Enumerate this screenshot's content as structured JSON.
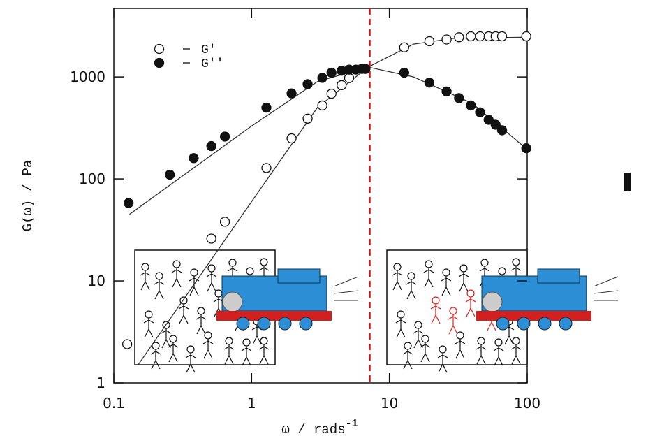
{
  "chart_data": {
    "type": "scatter",
    "xlabel": "ω / rads",
    "xlabel_sup": "-1",
    "ylabel": "G(ω) / Pa",
    "log_x": true,
    "log_y": true,
    "xlim": [
      0.1,
      100
    ],
    "ylim": [
      1,
      4700
    ],
    "xticks": [
      0.1,
      1,
      10,
      100
    ],
    "yticks": [
      1,
      10,
      100,
      1000
    ],
    "series": [
      {
        "name": "G'",
        "marker": "open",
        "color": "#111111",
        "x": [
          0.125,
          0.51,
          0.64,
          1.28,
          1.95,
          2.55,
          3.26,
          3.8,
          4.5,
          5.1,
          12.8,
          19.5,
          26,
          32,
          39,
          45.5,
          52.5,
          59,
          65.7,
          98.5
        ],
        "values": [
          2.4,
          26,
          38,
          128,
          250,
          390,
          525,
          685,
          830,
          975,
          1950,
          2240,
          2330,
          2450,
          2500,
          2500,
          2500,
          2500,
          2500,
          2500
        ]
      },
      {
        "name": "G''",
        "marker": "filled",
        "color": "#111111",
        "x": [
          0.128,
          0.255,
          0.38,
          0.51,
          0.64,
          1.28,
          1.95,
          2.55,
          3.26,
          3.8,
          4.5,
          5.1,
          5.7,
          6.3,
          6.7,
          12.8,
          19.5,
          26,
          32,
          39,
          45.5,
          52.5,
          59,
          65.7,
          98.5
        ],
        "values": [
          58,
          110,
          160,
          210,
          260,
          500,
          690,
          850,
          980,
          1100,
          1150,
          1180,
          1180,
          1200,
          1200,
          1100,
          880,
          720,
          620,
          525,
          450,
          380,
          340,
          300,
          200
        ]
      }
    ],
    "fits": [
      {
        "color": "#333333",
        "x": [
          0.15,
          1,
          3,
          7,
          15,
          30,
          100
        ],
        "values": [
          1.5,
          60,
          500,
          1250,
          2100,
          2400,
          2450
        ]
      },
      {
        "color": "#333333",
        "x": [
          0.13,
          1,
          3,
          7,
          15,
          40,
          100
        ],
        "values": [
          45,
          330,
          900,
          1250,
          1000,
          550,
          195
        ]
      }
    ],
    "vline": {
      "x": 7.2,
      "color": "#e01010"
    }
  }
}
